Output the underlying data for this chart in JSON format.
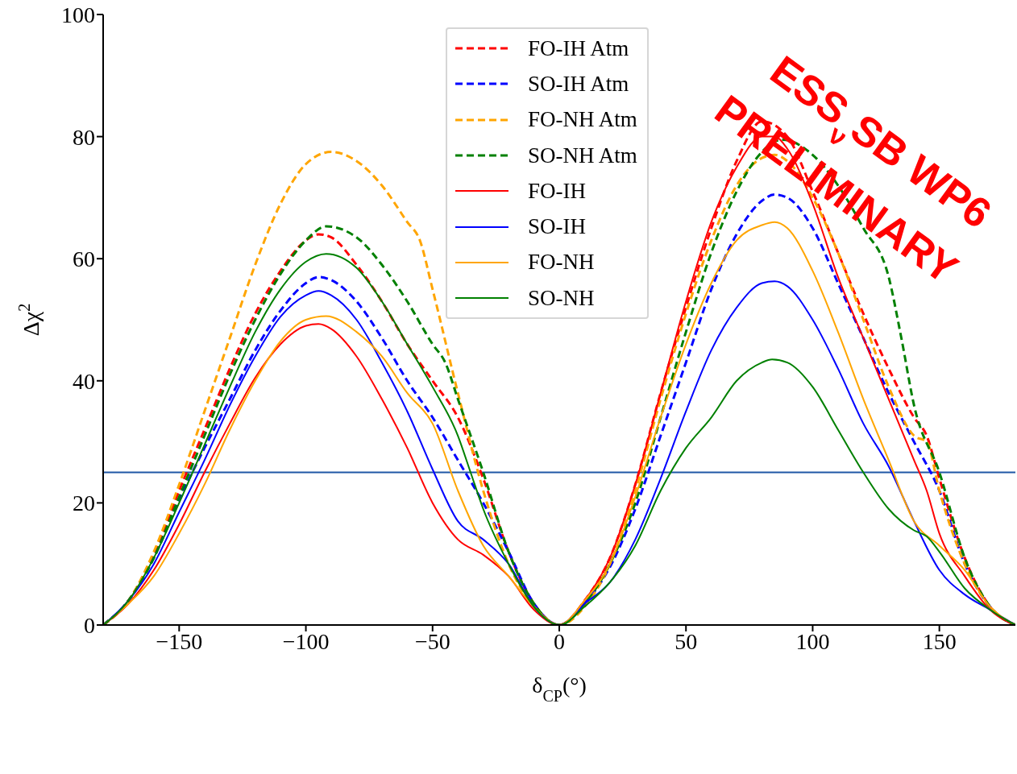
{
  "chart_data": {
    "type": "line",
    "xlabel": "δ$_{CP}$(°)",
    "ylabel": "Δχ$^{2}$",
    "xlim": [
      -180,
      180
    ],
    "ylim": [
      0,
      100
    ],
    "xticks": [
      {
        "value": -150,
        "label": "−150"
      },
      {
        "value": -100,
        "label": "−100"
      },
      {
        "value": -50,
        "label": "−50"
      },
      0,
      50,
      100,
      150
    ],
    "yticks": [
      0,
      20,
      40,
      60,
      80,
      100
    ],
    "legend": "top",
    "ref_lines": [
      {
        "axis": "y",
        "value": 25,
        "color": "#1f57a5"
      }
    ],
    "annotations": [
      "ESS$_{ν}$SB WP6",
      "PRELIMINARY"
    ],
    "series": [
      {
        "name": "FO-IH Atm",
        "color": "#ff0000",
        "line_style": "dashed",
        "x": [
          -180,
          -170,
          -160,
          -150,
          -140,
          -130,
          -120,
          -110,
          -100,
          -95,
          -90,
          -80,
          -70,
          -60,
          -50,
          -40,
          -30,
          -20,
          -10,
          0,
          10,
          20,
          30,
          40,
          50,
          60,
          70,
          80,
          90,
          100,
          110,
          120,
          130,
          140,
          145,
          150,
          160,
          170,
          180
        ],
        "values": [
          0,
          4,
          11.5,
          22,
          32,
          42,
          51,
          58,
          63,
          64,
          63.5,
          59,
          53,
          46,
          40,
          34,
          24,
          12,
          3.5,
          0,
          4,
          11,
          23,
          38,
          52,
          65,
          76,
          82.5,
          80,
          71,
          61,
          51,
          42,
          34,
          31,
          24,
          11,
          3,
          0
        ]
      },
      {
        "name": "SO-IH Atm",
        "color": "#0000ff",
        "line_style": "dashed",
        "x": [
          -180,
          -170,
          -160,
          -150,
          -140,
          -130,
          -120,
          -110,
          -100,
          -95,
          -90,
          -80,
          -70,
          -60,
          -50,
          -40,
          -30,
          -20,
          -10,
          0,
          10,
          20,
          30,
          40,
          50,
          60,
          70,
          80,
          85,
          90,
          100,
          110,
          120,
          130,
          140,
          150,
          160,
          170,
          180
        ],
        "values": [
          0,
          4,
          11,
          20.5,
          29,
          37,
          45,
          51.5,
          56,
          57,
          56.5,
          53,
          47,
          40,
          34,
          27,
          20,
          12,
          3.5,
          0,
          3.5,
          9.5,
          19,
          31,
          43,
          55,
          64,
          69.5,
          70.5,
          70,
          65,
          56,
          47,
          38,
          30,
          22,
          10,
          3,
          0
        ]
      },
      {
        "name": "FO-NH Atm",
        "color": "#ffa500",
        "line_style": "dashed",
        "x": [
          -180,
          -170,
          -160,
          -150,
          -140,
          -130,
          -120,
          -110,
          -100,
          -90,
          -80,
          -70,
          -60,
          -55,
          -50,
          -40,
          -30,
          -20,
          -10,
          0,
          10,
          20,
          30,
          40,
          50,
          60,
          70,
          80,
          85,
          90,
          100,
          110,
          120,
          130,
          140,
          145,
          150,
          160,
          170,
          180
        ],
        "values": [
          0,
          4,
          12,
          23,
          35,
          47,
          59,
          69,
          75.5,
          77.5,
          76,
          72,
          66,
          63,
          55,
          38,
          22,
          10,
          3,
          0,
          3,
          10,
          22,
          37,
          51,
          63,
          72,
          76.5,
          77,
          76,
          70,
          61,
          50,
          39,
          31,
          30,
          22,
          10,
          3,
          0
        ]
      },
      {
        "name": "SO-NH Atm",
        "color": "#008000",
        "line_style": "dashed",
        "x": [
          -180,
          -170,
          -160,
          -150,
          -140,
          -130,
          -120,
          -110,
          -100,
          -92,
          -80,
          -70,
          -60,
          -50,
          -45,
          -40,
          -30,
          -20,
          -10,
          0,
          10,
          20,
          30,
          40,
          50,
          60,
          70,
          80,
          88,
          100,
          110,
          120,
          130,
          135,
          140,
          150,
          160,
          170,
          180
        ],
        "values": [
          0,
          4,
          11,
          21,
          31,
          41,
          50,
          57.5,
          63,
          65.3,
          63.5,
          59,
          53,
          46,
          43,
          37,
          25,
          12,
          3.5,
          0,
          3.5,
          10,
          20,
          34,
          48,
          61,
          71,
          77.5,
          79.5,
          77,
          72,
          65,
          57,
          47,
          36,
          25,
          11,
          3,
          0
        ]
      },
      {
        "name": "FO-IH",
        "color": "#ff0000",
        "line_style": "solid",
        "x": [
          -180,
          -170,
          -160,
          -150,
          -140,
          -130,
          -120,
          -110,
          -100,
          -95,
          -90,
          -80,
          -70,
          -60,
          -50,
          -40,
          -30,
          -20,
          -10,
          0,
          10,
          20,
          30,
          40,
          50,
          60,
          70,
          80,
          85,
          90,
          100,
          110,
          120,
          130,
          140,
          145,
          150,
          160,
          170,
          180
        ],
        "values": [
          0,
          3.5,
          9,
          16.5,
          25,
          33,
          40.5,
          46,
          49,
          49.3,
          48.5,
          44,
          37,
          29,
          20,
          14,
          11.5,
          8,
          2.5,
          0,
          4,
          11,
          23,
          38,
          53,
          66,
          75,
          80,
          80,
          78,
          69,
          57,
          47,
          37,
          27,
          22,
          15,
          8,
          2.5,
          0
        ]
      },
      {
        "name": "SO-IH",
        "color": "#0000ff",
        "line_style": "solid",
        "x": [
          -180,
          -170,
          -160,
          -150,
          -140,
          -130,
          -120,
          -110,
          -100,
          -95,
          -90,
          -80,
          -70,
          -60,
          -50,
          -40,
          -30,
          -20,
          -10,
          0,
          10,
          20,
          30,
          40,
          50,
          60,
          70,
          80,
          85,
          90,
          100,
          110,
          120,
          130,
          140,
          150,
          160,
          170,
          180
        ],
        "values": [
          0,
          4,
          10,
          18.5,
          27,
          36,
          44,
          50.5,
          54,
          54.7,
          54,
          50,
          43,
          35,
          25.5,
          17,
          14,
          10,
          3,
          0,
          3.5,
          7,
          14,
          24,
          35,
          45,
          52,
          56,
          56.3,
          55.5,
          50,
          42,
          33,
          26,
          17,
          9,
          5,
          2.5,
          0
        ]
      },
      {
        "name": "FO-NH",
        "color": "#ffa500",
        "line_style": "solid",
        "x": [
          -180,
          -170,
          -160,
          -150,
          -140,
          -130,
          -120,
          -110,
          -100,
          -92,
          -80,
          -70,
          -60,
          -50,
          -40,
          -30,
          -20,
          -10,
          0,
          10,
          20,
          30,
          40,
          50,
          60,
          70,
          80,
          85,
          90,
          100,
          110,
          120,
          130,
          140,
          150,
          160,
          170,
          180
        ],
        "values": [
          0,
          3.5,
          8,
          15,
          23,
          32,
          40,
          46.5,
          50,
          50.6,
          48,
          44,
          38,
          33,
          22,
          13,
          8,
          3,
          0,
          4,
          10,
          21,
          34,
          46,
          56,
          63,
          65.5,
          66,
          65,
          58,
          48,
          37,
          27,
          17,
          13,
          9,
          3,
          0
        ]
      },
      {
        "name": "SO-NH",
        "color": "#008000",
        "line_style": "solid",
        "x": [
          -180,
          -170,
          -160,
          -150,
          -140,
          -130,
          -120,
          -110,
          -100,
          -92,
          -80,
          -70,
          -60,
          -50,
          -40,
          -35,
          -30,
          -20,
          -10,
          0,
          10,
          20,
          30,
          40,
          50,
          60,
          70,
          80,
          84,
          90,
          100,
          110,
          120,
          130,
          140,
          145,
          150,
          160,
          170,
          180
        ],
        "values": [
          0,
          4,
          11,
          20,
          29.5,
          39,
          48,
          55,
          59.5,
          60.8,
          58.5,
          53,
          46,
          39,
          31,
          25,
          19,
          10,
          3,
          0,
          3,
          7,
          13,
          22,
          29,
          34,
          40,
          43,
          43.5,
          43,
          39,
          32,
          25,
          19,
          15.5,
          14.5,
          12,
          6,
          2.5,
          0
        ]
      }
    ]
  }
}
